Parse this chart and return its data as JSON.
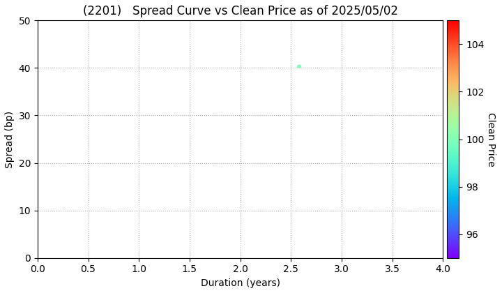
{
  "title": "(2201)   Spread Curve vs Clean Price as of 2025/05/02",
  "xlabel": "Duration (years)",
  "ylabel": "Spread (bp)",
  "colorbar_label": "Clean Price",
  "xlim": [
    0.0,
    4.0
  ],
  "ylim": [
    0,
    50
  ],
  "xticks": [
    0.0,
    0.5,
    1.0,
    1.5,
    2.0,
    2.5,
    3.0,
    3.5,
    4.0
  ],
  "yticks": [
    0,
    10,
    20,
    30,
    40,
    50
  ],
  "colorbar_ticks": [
    96,
    98,
    100,
    102,
    104
  ],
  "colorbar_vmin": 95,
  "colorbar_vmax": 105,
  "data_points": [
    {
      "duration": 2.58,
      "spread": 40.3,
      "clean_price": 99.8
    }
  ],
  "marker": "o",
  "marker_size": 4,
  "grid_color": "#aaaaaa",
  "background_color": "#ffffff",
  "title_fontsize": 12,
  "axis_fontsize": 10,
  "tick_fontsize": 10,
  "colorbar_fontsize": 10
}
